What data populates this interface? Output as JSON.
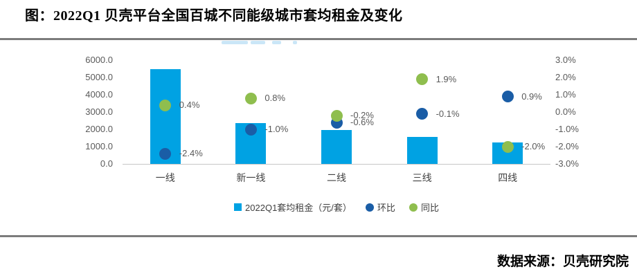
{
  "page": {
    "title": "图：2022Q1 贝壳平台全国百城不同能级城市套均租金及变化",
    "source": "数据来源：贝壳研究院"
  },
  "colors": {
    "bar": "#00A2E3",
    "mom": "#1A5DA6",
    "yoy": "#8FBE4E",
    "rule": "#7C7C7C",
    "baseline": "#C6C6C6",
    "text": "#595959"
  },
  "chart_data": {
    "type": "bar",
    "subtype": "combo-bar-scatter",
    "title": "2022Q1 贝壳平台全国百城不同能级城市套均租金及变化",
    "categories": [
      "一线",
      "新一线",
      "二线",
      "三线",
      "四线"
    ],
    "series": [
      {
        "name": "2022Q1套均租金（元/套）",
        "type": "bar",
        "axis": "left",
        "values": [
          5500,
          2350,
          1950,
          1550,
          1250
        ]
      },
      {
        "name": "环比",
        "type": "scatter",
        "axis": "right",
        "values": [
          -2.4,
          -1.0,
          -0.6,
          -0.1,
          0.9
        ],
        "labels": [
          "-2.4%",
          "-1.0%",
          "-0.6%",
          "-0.1%",
          "0.9%"
        ]
      },
      {
        "name": "同比",
        "type": "scatter",
        "axis": "right",
        "values": [
          0.4,
          0.8,
          -0.2,
          1.9,
          -2.0
        ],
        "labels": [
          "0.4%",
          "0.8%",
          "-0.2%",
          "1.9%",
          "-2.0%"
        ]
      }
    ],
    "left_axis": {
      "min": 0,
      "max": 6000,
      "step": 1000,
      "ticks": [
        "6000.0",
        "5000.0",
        "4000.0",
        "3000.0",
        "2000.0",
        "1000.0",
        "0.0"
      ]
    },
    "right_axis": {
      "min": -3,
      "max": 3,
      "step": 1,
      "ticks": [
        "3.0%",
        "2.0%",
        "1.0%",
        "0.0%",
        "-1.0%",
        "-2.0%",
        "-3.0%"
      ]
    },
    "grid": false,
    "legend_position": "bottom"
  }
}
